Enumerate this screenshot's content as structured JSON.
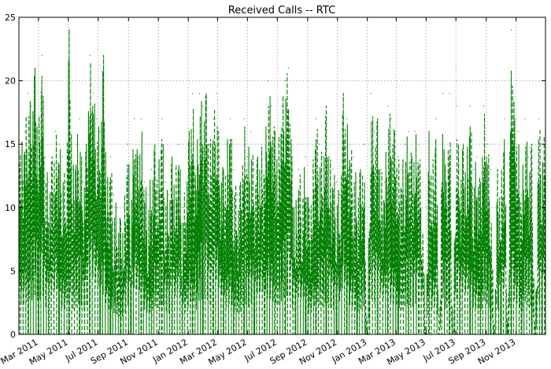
{
  "chart_data": {
    "type": "line",
    "title": "Received Calls -- RTC",
    "xlabel": "",
    "ylabel": "",
    "xlim": [
      "2011-01-20",
      "2013-12-31"
    ],
    "ylim": [
      0,
      25
    ],
    "yticks": [
      0,
      5,
      10,
      15,
      20,
      25
    ],
    "xticks": [
      {
        "date": "2011-03-01",
        "label": "Mar 2011"
      },
      {
        "date": "2011-05-01",
        "label": "May 2011"
      },
      {
        "date": "2011-07-01",
        "label": "Jul 2011"
      },
      {
        "date": "2011-09-01",
        "label": "Sep 2011"
      },
      {
        "date": "2011-11-01",
        "label": "Nov 2011"
      },
      {
        "date": "2012-01-01",
        "label": "Jan 2012"
      },
      {
        "date": "2012-03-01",
        "label": "Mar 2012"
      },
      {
        "date": "2012-05-01",
        "label": "May 2012"
      },
      {
        "date": "2012-07-01",
        "label": "Jul 2012"
      },
      {
        "date": "2012-09-01",
        "label": "Sep 2012"
      },
      {
        "date": "2012-11-01",
        "label": "Nov 2012"
      },
      {
        "date": "2013-01-01",
        "label": "Jan 2013"
      },
      {
        "date": "2013-03-01",
        "label": "Mar 2013"
      },
      {
        "date": "2013-05-01",
        "label": "May 2013"
      },
      {
        "date": "2013-07-01",
        "label": "Jul 2013"
      },
      {
        "date": "2013-09-01",
        "label": "Sep 2013"
      },
      {
        "date": "2013-11-01",
        "label": "Nov 2013"
      }
    ],
    "grid": true,
    "series": [
      {
        "name": "",
        "color": "#007f00",
        "linestyle": "dashed",
        "x": [
          "2011-01-20",
          "2011-01-25",
          "2011-02-01",
          "2011-02-08",
          "2011-02-15",
          "2011-02-22",
          "2011-03-01",
          "2011-03-08",
          "2011-03-15",
          "2011-03-22",
          "2011-03-29",
          "2011-04-05",
          "2011-04-12",
          "2011-04-19",
          "2011-04-26",
          "2011-05-03",
          "2011-05-10",
          "2011-05-17",
          "2011-05-24",
          "2011-05-31",
          "2011-06-07",
          "2011-06-14",
          "2011-06-21",
          "2011-06-28",
          "2011-07-05",
          "2011-07-12",
          "2011-07-19",
          "2011-07-26",
          "2011-08-02",
          "2011-08-09",
          "2011-08-16",
          "2011-08-23",
          "2011-08-30",
          "2011-09-06",
          "2011-09-13",
          "2011-09-20",
          "2011-09-27",
          "2011-10-04",
          "2011-10-11",
          "2011-10-18",
          "2011-10-25",
          "2011-11-01",
          "2011-11-08",
          "2011-11-15",
          "2011-11-22",
          "2011-11-29",
          "2011-12-06",
          "2011-12-13",
          "2011-12-20",
          "2011-12-27",
          "2012-01-03",
          "2012-01-10",
          "2012-01-17",
          "2012-01-24",
          "2012-01-31",
          "2012-02-07",
          "2012-02-14",
          "2012-02-21",
          "2012-02-28",
          "2012-03-06",
          "2012-03-13",
          "2012-03-20",
          "2012-03-27",
          "2012-04-03",
          "2012-04-10",
          "2012-04-17",
          "2012-04-24",
          "2012-05-01",
          "2012-05-08",
          "2012-05-15",
          "2012-05-22",
          "2012-05-29",
          "2012-06-05",
          "2012-06-12",
          "2012-06-19",
          "2012-06-26",
          "2012-07-03",
          "2012-07-10",
          "2012-07-17",
          "2012-07-24",
          "2012-07-31",
          "2012-08-07",
          "2012-08-14",
          "2012-08-21",
          "2012-08-28",
          "2012-09-04",
          "2012-09-11",
          "2012-09-18",
          "2012-09-25",
          "2012-10-02",
          "2012-10-09",
          "2012-10-16",
          "2012-10-23",
          "2012-10-30",
          "2012-11-06",
          "2012-11-13",
          "2012-11-20",
          "2012-11-27",
          "2012-12-04",
          "2012-12-11",
          "2012-12-18",
          "2012-12-25",
          "2013-01-01",
          "2013-01-08",
          "2013-01-15",
          "2013-01-22",
          "2013-01-29",
          "2013-02-05",
          "2013-02-12",
          "2013-02-19",
          "2013-02-26",
          "2013-03-05",
          "2013-03-12",
          "2013-03-19",
          "2013-03-26",
          "2013-04-02",
          "2013-04-09",
          "2013-04-16",
          "2013-04-23",
          "2013-04-30",
          "2013-05-07",
          "2013-05-14",
          "2013-05-21",
          "2013-05-28",
          "2013-06-04",
          "2013-06-11",
          "2013-06-18",
          "2013-06-25",
          "2013-07-02",
          "2013-07-09",
          "2013-07-16",
          "2013-07-23",
          "2013-07-30",
          "2013-08-06",
          "2013-08-13",
          "2013-08-20",
          "2013-08-27",
          "2013-09-03",
          "2013-09-10",
          "2013-09-17",
          "2013-09-24",
          "2013-10-01",
          "2013-10-08",
          "2013-10-15",
          "2013-10-22",
          "2013-10-29",
          "2013-11-05",
          "2013-11-12",
          "2013-11-19",
          "2013-11-26",
          "2013-12-03",
          "2013-12-10",
          "2013-12-17",
          "2013-12-24",
          "2013-12-31"
        ],
        "y": [
          17,
          15,
          16,
          19,
          18,
          21,
          16,
          22,
          14,
          12,
          14,
          16,
          15,
          14,
          12,
          24,
          13,
          15,
          17,
          12,
          15,
          22,
          19,
          17,
          16,
          22,
          12,
          14,
          11,
          10,
          9,
          10,
          15,
          11,
          17,
          14,
          17,
          12,
          11,
          13,
          15,
          13,
          17,
          12,
          11,
          14,
          13,
          15,
          10,
          12,
          16,
          19,
          13,
          19,
          18,
          19,
          15,
          17,
          19,
          14,
          13,
          15,
          17,
          13,
          11,
          12,
          17,
          14,
          16,
          13,
          14,
          15,
          14,
          20,
          18,
          16,
          15,
          18,
          20,
          21,
          14,
          10,
          13,
          12,
          14,
          10,
          13,
          17,
          15,
          14,
          18,
          14,
          13,
          12,
          11,
          19,
          17,
          15,
          14,
          12,
          13,
          15,
          0,
          19,
          16,
          17,
          13,
          12,
          18,
          17,
          16,
          14,
          13,
          15,
          16,
          14,
          16,
          15,
          12,
          0,
          16,
          13,
          17,
          0,
          19,
          12,
          19,
          0,
          18,
          13,
          15,
          14,
          18,
          13,
          14,
          12,
          18,
          15,
          13,
          0,
          13,
          12,
          17,
          0,
          24,
          17,
          16,
          11,
          17,
          14,
          15,
          0,
          17,
          15,
          16
        ]
      }
    ]
  }
}
